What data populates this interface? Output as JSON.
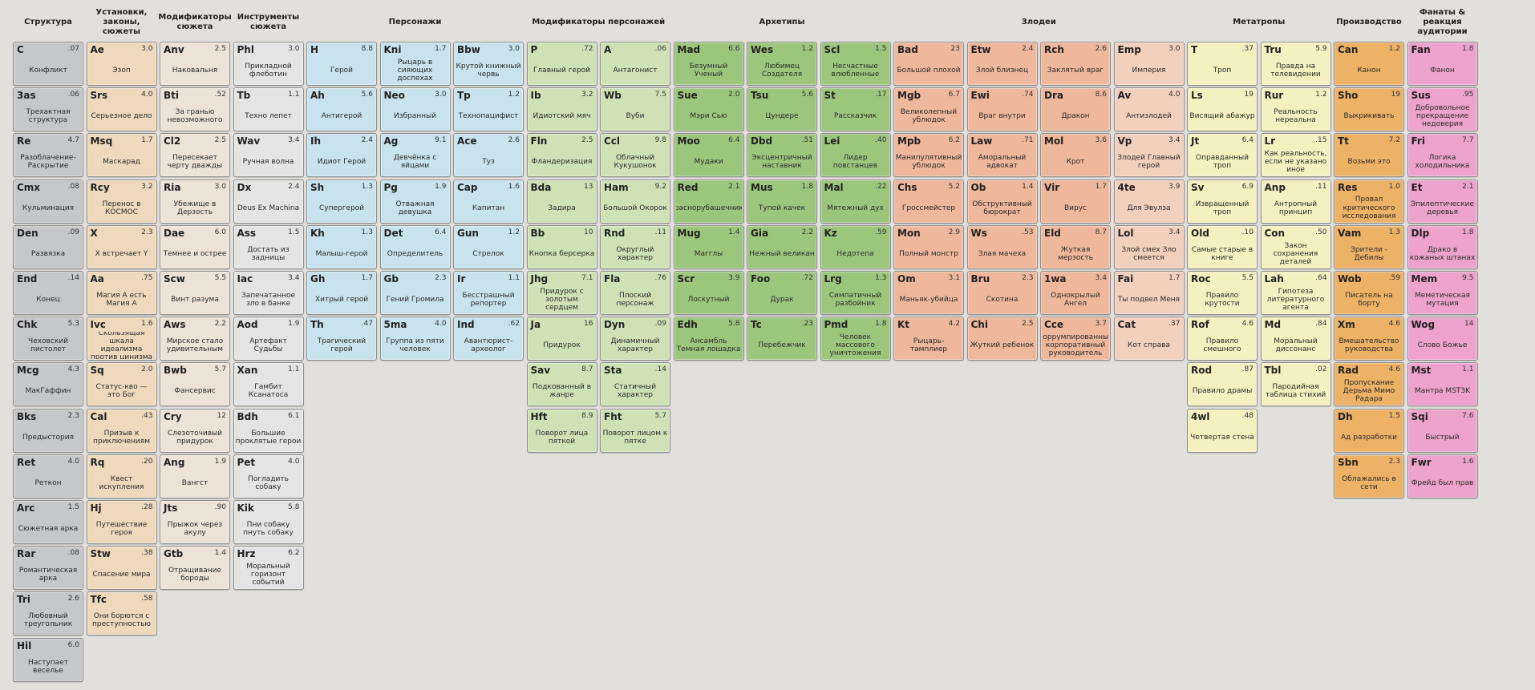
{
  "columns": [
    {
      "id": "struct",
      "header": "Структура",
      "span": 1,
      "color": "gray",
      "cells": [
        [
          "C",
          ".07",
          "Конфликт"
        ],
        [
          "3as",
          ".06",
          "Трехактная структура"
        ],
        [
          "Re",
          "4.7",
          "Разоблачение-Раскрытие"
        ],
        [
          "Cmx",
          ".08",
          "Кульминация"
        ],
        [
          "Den",
          ".09",
          "Развязка"
        ],
        [
          "End",
          ".14",
          "Конец"
        ],
        [
          "Chk",
          "5.3",
          "Чеховский пистолет"
        ],
        [
          "Mcg",
          "4.3",
          "МакГаффин"
        ],
        [
          "Bks",
          "2.3",
          "Предыстория"
        ],
        [
          "Ret",
          "4.0",
          "Реткон"
        ],
        [
          "Arc",
          "1.5",
          "Сюжетная арка"
        ],
        [
          "Rar",
          ".08",
          "Романтическая арка"
        ],
        [
          "Tri",
          "2.6",
          "Любовный треугольник"
        ],
        [
          "Hil",
          "6.0",
          "Наступает веселье"
        ]
      ]
    },
    {
      "id": "settings",
      "header": "Установки, законы, сюжеты",
      "span": 1,
      "color": "tan",
      "cells": [
        [
          "Ae",
          "3.0",
          "Эзоп"
        ],
        [
          "Srs",
          "4.0",
          "Серьезное дело"
        ],
        [
          "Msq",
          "1.7",
          "Маскарад"
        ],
        [
          "Rcy",
          "3.2",
          "Перенос в КОСМОС"
        ],
        [
          "X",
          "2.3",
          "X встречает Y"
        ],
        [
          "Aa",
          ".75",
          "Магия А есть Магия А"
        ],
        [
          "Ivc",
          "1.6",
          "Скользящая шкала идеализма против цинизма"
        ],
        [
          "Sq",
          "2.0",
          "Статус-кво — это Бог"
        ],
        [
          "Cal",
          ".43",
          "Призыв к приключениям"
        ],
        [
          "Rq",
          ".20",
          "Квест искупления"
        ],
        [
          "Hj",
          ".28",
          "Путешествие героя"
        ],
        [
          "Stw",
          ".38",
          "Спасение мира"
        ],
        [
          "Tfc",
          ".58",
          "Они борются с преступностью"
        ]
      ]
    },
    {
      "id": "plotmods",
      "header": "Модификаторы сюжета",
      "span": 1,
      "color": "beige",
      "cells": [
        [
          "Anv",
          "2.5",
          "Наковальня"
        ],
        [
          "Bti",
          ".52",
          "За гранью невозможного"
        ],
        [
          "Cl2",
          "2.5",
          "Пересекает черту дважды"
        ],
        [
          "Ria",
          "3.0",
          "Убежище в Дерзость"
        ],
        [
          "Dae",
          "6.0",
          "Темнее и острее"
        ],
        [
          "Scw",
          "5.5",
          "Винт разума"
        ],
        [
          "Aws",
          "2.2",
          "Мирское стало удивительным"
        ],
        [
          "Bwb",
          "5.7",
          "Фансервис"
        ],
        [
          "Cry",
          "12",
          "Слезоточивый придурок"
        ],
        [
          "Ang",
          "1.9",
          "Вангст"
        ],
        [
          "Jts",
          ".90",
          "Прыжок через акулу"
        ],
        [
          "Gtb",
          "1.4",
          "Отращивание бороды"
        ]
      ]
    },
    {
      "id": "plottools",
      "header": "Инструменты сюжета",
      "span": 1,
      "color": "silver",
      "cells": [
        [
          "Phl",
          "3.0",
          "Прикладной флеботин"
        ],
        [
          "Tb",
          "1.1",
          "Техно лепет"
        ],
        [
          "Wav",
          "3.4",
          "Ручная волна"
        ],
        [
          "Dx",
          "2.4",
          "Deus Ex Machina"
        ],
        [
          "Ass",
          "1.5",
          "Достать из задницы"
        ],
        [
          "Iac",
          "3.4",
          "Запечатанное зло в банке"
        ],
        [
          "Aod",
          "1.9",
          "Артефакт Судьбы"
        ],
        [
          "Xan",
          "1.1",
          "Гамбит Ксанатоса"
        ],
        [
          "Bdh",
          "6.1",
          "Большие проклятые герои"
        ],
        [
          "Pet",
          "4.0",
          "Погладить собаку"
        ],
        [
          "Kik",
          "5.8",
          "Пни собаку пнуть собаку"
        ],
        [
          "Hrz",
          "6.2",
          "Моральный горизонт событий"
        ]
      ]
    },
    {
      "id": "chars",
      "header": "Персонажи",
      "span": 3,
      "color": "blue",
      "subcols": [
        [
          [
            "H",
            "8.8",
            "Герой"
          ],
          [
            "Ah",
            "5.6",
            "Антигерой"
          ],
          [
            "Ih",
            "2.4",
            "Идиот Герой"
          ],
          [
            "Sh",
            "1.3",
            "Супергерой"
          ],
          [
            "Kh",
            "1.3",
            "Малыш-герой"
          ],
          [
            "Gh",
            "1.7",
            "Хитрый герой"
          ],
          [
            "Th",
            ".47",
            "Трагический герой"
          ]
        ],
        [
          [
            "Kni",
            "1.7",
            "Рыцарь в сияющих доспехах"
          ],
          [
            "Neo",
            "3.0",
            "Избранный"
          ],
          [
            "Ag",
            "9.1",
            "Девчёнка с яйцами"
          ],
          [
            "Pg",
            "1.9",
            "Отважная девушка"
          ],
          [
            "Det",
            "6.4",
            "Определитель"
          ],
          [
            "Gb",
            "2.3",
            "Гений Громила"
          ],
          [
            "5ma",
            "4.0",
            "Группа из пяти человек"
          ]
        ],
        [
          [
            "Bbw",
            "3.0",
            "Крутой книжный червь"
          ],
          [
            "Tp",
            "1.2",
            "Технопацифист"
          ],
          [
            "Ace",
            "2.6",
            "Туз"
          ],
          [
            "Cap",
            "1.6",
            "Капитан"
          ],
          [
            "Gun",
            "1.2",
            "Стрелок"
          ],
          [
            "Ir",
            "1.1",
            "Бесстрашный репортер"
          ],
          [
            "Ind",
            ".62",
            "Авантюрист-археолог"
          ]
        ]
      ]
    },
    {
      "id": "charmods",
      "header": "Модификаторы персонажей",
      "span": 2,
      "color": "lgreen",
      "subcols": [
        [
          [
            "P",
            ".72",
            "Главный герой"
          ],
          [
            "Ib",
            "3.2",
            "Идиотский мяч"
          ],
          [
            "Fln",
            "2.5",
            "Фландеризация"
          ],
          [
            "Bda",
            "13",
            "Задира"
          ],
          [
            "Bb",
            "10",
            "Кнопка берсерка"
          ],
          [
            "Jhg",
            "7.1",
            "Придурок с золотым сердцем"
          ],
          [
            "Ja",
            "16",
            "Придурок"
          ],
          [
            "Sav",
            "8.7",
            "Подкованный в жанре"
          ],
          [
            "Hft",
            "8.9",
            "Поворот лица пяткой"
          ]
        ],
        [
          [
            "A",
            ".06",
            "Антагонист"
          ],
          [
            "Wb",
            "7.5",
            "Вуби"
          ],
          [
            "Ccl",
            "9.8",
            "Облачный Кукушонок"
          ],
          [
            "Ham",
            "9.2",
            "Большой Окорок"
          ],
          [
            "Rnd",
            ".11",
            "Округлый характер"
          ],
          [
            "Fla",
            ".76",
            "Плоский персонаж"
          ],
          [
            "Dyn",
            ".09",
            "Динамичный характер"
          ],
          [
            "Sta",
            ".14",
            "Статичный характер"
          ],
          [
            "Fht",
            "5.7",
            "Поворот лицом к пятке"
          ]
        ]
      ]
    },
    {
      "id": "arche",
      "header": "Архетипы",
      "span": 3,
      "color": "green",
      "subcols": [
        [
          [
            "Mad",
            "6.6",
            "Безумный Ученый"
          ],
          [
            "Sue",
            "2.0",
            "Мэри Сью"
          ],
          [
            "Moo",
            "6.4",
            "Мудаки"
          ],
          [
            "Red",
            "2.1",
            "Краснорубашечники"
          ],
          [
            "Mug",
            "1.4",
            "Магглы"
          ],
          [
            "Scr",
            "3.9",
            "Лоскутный"
          ],
          [
            "Edh",
            "5.8",
            "Ансамбль Темная лошадка"
          ]
        ],
        [
          [
            "Wes",
            "1.2",
            "Любимец Создателя"
          ],
          [
            "Tsu",
            "5.6",
            "Цундере"
          ],
          [
            "Dbd",
            ".51",
            "Эксцентричный наставник"
          ],
          [
            "Mus",
            "1.8",
            "Тупой качек"
          ],
          [
            "Gia",
            "2.2",
            "Нежный великан"
          ],
          [
            "Foo",
            ".72",
            "Дурак"
          ],
          [
            "Tc",
            ".23",
            "Перебежчик"
          ]
        ],
        [
          [
            "Scl",
            "1.5",
            "Несчастные влюбленные"
          ],
          [
            "St",
            ".17",
            "Рассказчик"
          ],
          [
            "Lei",
            ".40",
            "Лидер повстанцев"
          ],
          [
            "Mal",
            ".22",
            "Мятежный дух"
          ],
          [
            "Kz",
            ".59",
            "Недотепа"
          ],
          [
            "Lrg",
            "1.3",
            "Симпатичный разбойник"
          ],
          [
            "Pmd",
            "1.8",
            "Человек массового уничтожения"
          ]
        ]
      ]
    },
    {
      "id": "villains",
      "header": "Злодеи",
      "span": 4,
      "color": "salmon",
      "subcols": [
        [
          [
            "Bad",
            "23",
            "Большой плохой"
          ],
          [
            "Mgb",
            "6.7",
            "Великолепный ублюдок"
          ],
          [
            "Mpb",
            "6.2",
            "Манипулятивный ублюдок"
          ],
          [
            "Chs",
            "5.2",
            "Гроссмейстер"
          ],
          [
            "Mon",
            "2.9",
            "Полный монстр"
          ],
          [
            "Om",
            "3.1",
            "Маньяк-убийца"
          ],
          [
            "Kt",
            "4.2",
            "Рыцарь-тамплиер"
          ]
        ],
        [
          [
            "Etw",
            "2.4",
            "Злой близнец"
          ],
          [
            "Ewi",
            ".74",
            "Враг внутри"
          ],
          [
            "Law",
            ".71",
            "Аморальный адвокат"
          ],
          [
            "Ob",
            "1.4",
            "Обструктивный бюрократ"
          ],
          [
            "Ws",
            ".53",
            "Злая мачеха"
          ],
          [
            "Bru",
            "2.3",
            "Скотина"
          ],
          [
            "Chi",
            "2.5",
            "Жуткий ребенок"
          ]
        ],
        [
          [
            "Rch",
            "2.6",
            "Заклятый враг"
          ],
          [
            "Dra",
            "8.6",
            "Дракон"
          ],
          [
            "Mol",
            "3.6",
            "Крот"
          ],
          [
            "Vir",
            "1.7",
            "Вирус"
          ],
          [
            "Eld",
            "8.7",
            "Жуткая мерзость"
          ],
          [
            "1wa",
            "3.4",
            "Однокрылый Ангел"
          ],
          [
            "Cce",
            "3.7",
            "Коррумпированный корпоративный руководитель"
          ]
        ],
        [
          [
            "Emp",
            "3.0",
            "Империя"
          ],
          [
            "Av",
            "4.0",
            "Антизлодей"
          ],
          [
            "Vp",
            "3.4",
            "Злодей Главный герой"
          ],
          [
            "4te",
            "3.9",
            "Для Эвулза"
          ],
          [
            "Lol",
            "3.4",
            "Злой смех Зло смеется"
          ],
          [
            "Fai",
            "1.7",
            "Ты подвел Меня"
          ],
          [
            "Cat",
            ".37",
            "Кот справа"
          ]
        ]
      ]
    },
    {
      "id": "meta",
      "header": "Метатропы",
      "span": 2,
      "color": "yellow",
      "subcols": [
        [
          [
            "T",
            ".37",
            "Троп"
          ],
          [
            "Ls",
            "19",
            "Висящий абажур"
          ],
          [
            "Jt",
            "6.4",
            "Оправданный троп"
          ],
          [
            "Sv",
            "6.9",
            "Извращенный троп"
          ],
          [
            "Old",
            ".10",
            "Самые старые в книге"
          ],
          [
            "Roc",
            "5.5",
            "Правило крутости"
          ],
          [
            "Rof",
            "4.6",
            "Правило смешного"
          ],
          [
            "Rod",
            ".87",
            "Правило драмы"
          ],
          [
            "4wl",
            ".48",
            "Четвертая стена"
          ]
        ],
        [
          [
            "Tru",
            "5.9",
            "Правда на телевидении"
          ],
          [
            "Rur",
            "1.2",
            "Реальность нереальна"
          ],
          [
            "Lr",
            ".15",
            "Как реальность, если не указано иное"
          ],
          [
            "Anp",
            ".11",
            "Антропный принцип"
          ],
          [
            "Con",
            ".50",
            "Закон сохранения деталей"
          ],
          [
            "Lah",
            ".64",
            "Гипотеза литературного агента"
          ],
          [
            "Md",
            ".84",
            "Моральный диссонанс"
          ],
          [
            "Tbl",
            ".02",
            "Пародийная таблица стихий"
          ]
        ]
      ]
    },
    {
      "id": "prod",
      "header": "Производство",
      "span": 1,
      "color": "orange",
      "cells": [
        [
          "Can",
          "1.2",
          "Канон"
        ],
        [
          "Sho",
          "19",
          "Выкрикивать"
        ],
        [
          "Tt",
          "7.2",
          "Возьми это"
        ],
        [
          "Res",
          "1.0",
          "Провал критического исследования"
        ],
        [
          "Vam",
          "1.3",
          "Зрители - Дебилы"
        ],
        [
          "Wob",
          ".59",
          "Писатель на борту"
        ],
        [
          "Xm",
          "4.6",
          "Вмешательство руководства"
        ],
        [
          "Rad",
          "4.6",
          "Пропускание Дерьма Мимо Радара"
        ],
        [
          "Dh",
          "1.5",
          "Ад разработки"
        ],
        [
          "Sbn",
          "2.3",
          "Облажались в сети"
        ]
      ]
    },
    {
      "id": "fans",
      "header": "Фанаты & реакция аудитории",
      "span": 1,
      "color": "pink",
      "cells": [
        [
          "Fan",
          "1.8",
          "Фанон"
        ],
        [
          "Sus",
          ".95",
          "Добровольное прекращение недоверия"
        ],
        [
          "Fri",
          "7.7",
          "Логика холодильника"
        ],
        [
          "Et",
          "2.1",
          "Эпилептические деревья"
        ],
        [
          "Dlp",
          "1.8",
          "Драко в кожаных штанах"
        ],
        [
          "Mem",
          "9.5",
          "Меметическая мутация"
        ],
        [
          "Wog",
          "14",
          "Слово Божье"
        ],
        [
          "Mst",
          "1.1",
          "Мантра MST3K"
        ],
        [
          "Sqi",
          "7.6",
          "Быстрый"
        ],
        [
          "Fwr",
          "1.6",
          "Фрейд был прав"
        ]
      ]
    }
  ],
  "colors": {
    "gray": "#c6c7c9",
    "tan": "#eed9bd",
    "beige": "#ece2d6",
    "silver": "#e4e4e4",
    "blue": "#c8e3ee",
    "lgreen": "#cfe2b5",
    "green": "#9dc67d",
    "salmon": "#efb79b",
    "peach": "#f3cfbd",
    "yellow": "#f4f0c0",
    "orange": "#eeb266",
    "pink": "#eda3cb",
    "background": "#e2e0dc"
  }
}
